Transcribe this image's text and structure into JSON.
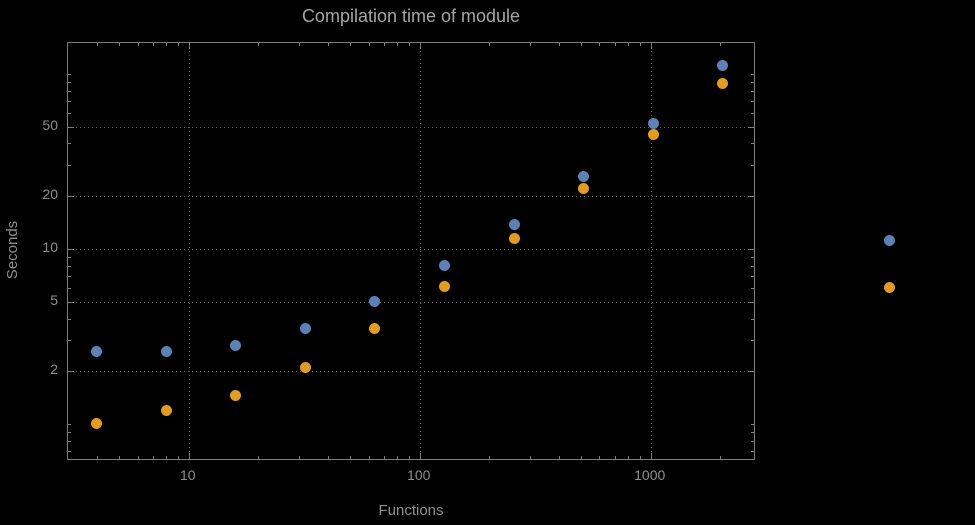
{
  "chart_data": {
    "type": "scatter",
    "title": "Compilation time of module",
    "xlabel": "Functions",
    "ylabel": "Seconds",
    "x_scale": "log",
    "y_scale": "log",
    "xlim": [
      3,
      2800
    ],
    "ylim": [
      0.63,
      150
    ],
    "grid": true,
    "background": "#000000",
    "grid_color": "#5e5e5e",
    "frame_color": "#7d7d7d",
    "text_color": "#8f8f8f",
    "x_ticks": [
      {
        "value": 10,
        "label": "10"
      },
      {
        "value": 100,
        "label": "100"
      },
      {
        "value": 1000,
        "label": "1000"
      }
    ],
    "y_ticks": [
      {
        "value": 2,
        "label": "2"
      },
      {
        "value": 5,
        "label": "5"
      },
      {
        "value": 10,
        "label": "10"
      },
      {
        "value": 20,
        "label": "20"
      },
      {
        "value": 50,
        "label": "50"
      }
    ],
    "series": [
      {
        "name": "blue-series",
        "color": "#5e81b5",
        "points": [
          [
            4,
            2.6
          ],
          [
            8,
            2.6
          ],
          [
            16,
            2.8
          ],
          [
            32,
            3.5
          ],
          [
            64,
            5.0
          ],
          [
            128,
            8.0
          ],
          [
            256,
            13.8
          ],
          [
            512,
            26
          ],
          [
            1024,
            52
          ],
          [
            2048,
            112
          ]
        ]
      },
      {
        "name": "orange-series",
        "color": "#e19c24",
        "points": [
          [
            4,
            1.0
          ],
          [
            8,
            1.2
          ],
          [
            16,
            1.45
          ],
          [
            32,
            2.1
          ],
          [
            64,
            3.5
          ],
          [
            128,
            6.1
          ],
          [
            256,
            11.4
          ],
          [
            512,
            22
          ],
          [
            1024,
            45
          ],
          [
            2048,
            88
          ]
        ]
      }
    ],
    "legend_markers": [
      {
        "name": "blue-series-marker",
        "color": "#5e81b5"
      },
      {
        "name": "orange-series-marker",
        "color": "#e19c24"
      }
    ]
  }
}
